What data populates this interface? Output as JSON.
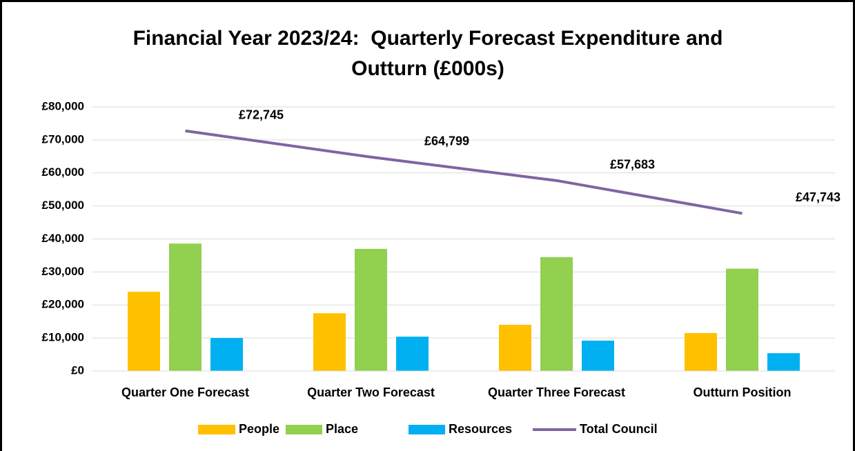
{
  "chart_data": {
    "type": "bar",
    "title": [
      "Financial Year 2023/24:  Quarterly Forecast Expenditure and",
      "Outturn (£000s)"
    ],
    "categories": [
      "Quarter One Forecast",
      "Quarter Two Forecast",
      "Quarter Three Forecast",
      "Outturn Position"
    ],
    "series": [
      {
        "name": "People",
        "color": "#ffc000",
        "values": [
          24000,
          17500,
          14000,
          11500
        ]
      },
      {
        "name": "Place",
        "color": "#92d050",
        "values": [
          38600,
          37000,
          34500,
          31000
        ]
      },
      {
        "name": "Resources",
        "color": "#00b0f0",
        "values": [
          10000,
          10400,
          9200,
          5400
        ]
      },
      {
        "name": "Total Council",
        "type": "line",
        "color": "#8064a2",
        "values": [
          72745,
          64799,
          57683,
          47743
        ],
        "value_labels": [
          "£72,745",
          "£64,799",
          "£57,683",
          "£47,743"
        ]
      }
    ],
    "ylim": [
      0,
      80000
    ],
    "yticks": [
      {
        "value": 0,
        "label": "£0"
      },
      {
        "value": 10000,
        "label": "£10,000"
      },
      {
        "value": 20000,
        "label": "£20,000"
      },
      {
        "value": 30000,
        "label": "£30,000"
      },
      {
        "value": 40000,
        "label": "£40,000"
      },
      {
        "value": 50000,
        "label": "£50,000"
      },
      {
        "value": 60000,
        "label": "£60,000"
      },
      {
        "value": 70000,
        "label": "£70,000"
      },
      {
        "value": 80000,
        "label": "£80,000"
      }
    ],
    "grid": true,
    "legend": "bottom"
  }
}
